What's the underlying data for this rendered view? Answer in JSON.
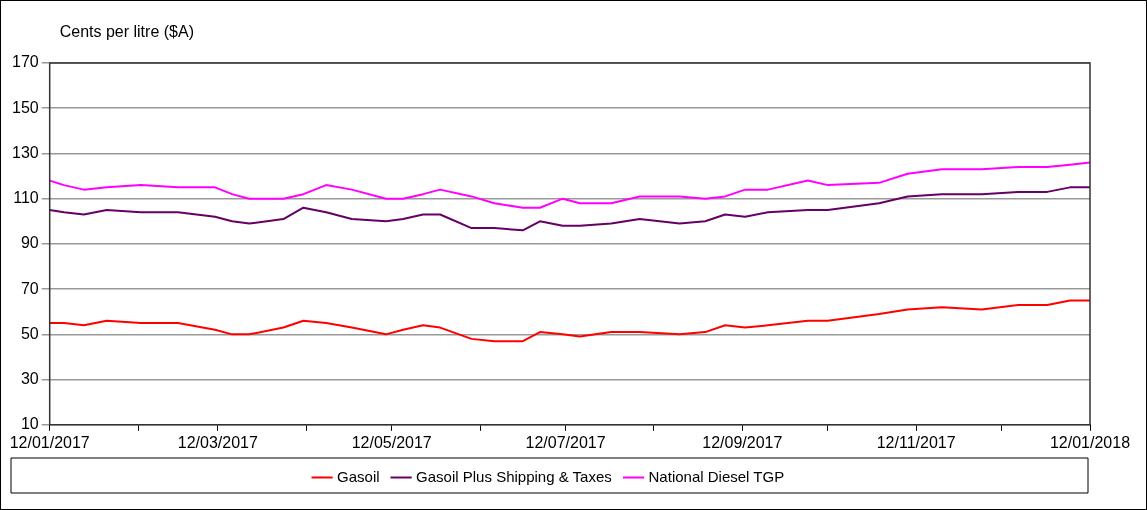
{
  "chart_data": {
    "type": "line",
    "ylabel": "Cents per litre ($A)",
    "x": [
      "2017-01-12",
      "2017-01-17",
      "2017-01-24",
      "2017-02-01",
      "2017-02-13",
      "2017-02-26",
      "2017-03-11",
      "2017-03-17",
      "2017-03-23",
      "2017-04-04",
      "2017-04-11",
      "2017-04-19",
      "2017-04-28",
      "2017-05-10",
      "2017-05-16",
      "2017-05-23",
      "2017-05-29",
      "2017-06-09",
      "2017-06-17",
      "2017-06-27",
      "2017-07-03",
      "2017-07-11",
      "2017-07-17",
      "2017-07-28",
      "2017-08-07",
      "2017-08-21",
      "2017-08-30",
      "2017-09-06",
      "2017-09-13",
      "2017-09-21",
      "2017-10-05",
      "2017-10-12",
      "2017-10-30",
      "2017-11-09",
      "2017-11-21",
      "2017-12-05",
      "2017-12-18",
      "2017-12-28",
      "2018-01-05",
      "2018-01-12"
    ],
    "series": [
      {
        "name": "Gasoil",
        "color": "#ff0000",
        "values": [
          55,
          55,
          54,
          56,
          55,
          55,
          52,
          50,
          50,
          53,
          56,
          55,
          53,
          50,
          52,
          54,
          53,
          48,
          47,
          47,
          51,
          50,
          49,
          51,
          51,
          50,
          51,
          54,
          53,
          54,
          56,
          56,
          59,
          61,
          62,
          61,
          63,
          63,
          65,
          65
        ]
      },
      {
        "name": "Gasoil Plus Shipping & Taxes",
        "color": "#660066",
        "values": [
          105,
          104,
          103,
          105,
          104,
          104,
          102,
          100,
          99,
          101,
          106,
          104,
          101,
          100,
          101,
          103,
          103,
          97,
          97,
          96,
          100,
          98,
          98,
          99,
          101,
          99,
          100,
          103,
          102,
          104,
          105,
          105,
          108,
          111,
          112,
          112,
          113,
          113,
          115,
          115
        ]
      },
      {
        "name": "National Diesel TGP",
        "color": "#ff00ff",
        "values": [
          118,
          116,
          114,
          115,
          116,
          115,
          115,
          112,
          110,
          110,
          112,
          116,
          114,
          110,
          110,
          112,
          114,
          111,
          108,
          106,
          106,
          110,
          108,
          108,
          111,
          111,
          110,
          111,
          114,
          114,
          118,
          116,
          117,
          121,
          123,
          123,
          124,
          124,
          125,
          126
        ]
      }
    ],
    "xlim": [
      "2017-01-12",
      "2018-01-12"
    ],
    "xticks": [
      {
        "value": "2017-01-12",
        "label": "12/01/2017"
      },
      {
        "value": "2017-02-12",
        "label": null
      },
      {
        "value": "2017-03-12",
        "label": "12/03/2017"
      },
      {
        "value": "2017-04-12",
        "label": null
      },
      {
        "value": "2017-05-12",
        "label": "12/05/2017"
      },
      {
        "value": "2017-06-12",
        "label": null
      },
      {
        "value": "2017-07-12",
        "label": "12/07/2017"
      },
      {
        "value": "2017-08-12",
        "label": null
      },
      {
        "value": "2017-09-12",
        "label": "12/09/2017"
      },
      {
        "value": "2017-10-12",
        "label": null
      },
      {
        "value": "2017-11-12",
        "label": "12/11/2017"
      },
      {
        "value": "2017-12-12",
        "label": null
      },
      {
        "value": "2018-01-12",
        "label": "12/01/2018"
      }
    ],
    "ylim": [
      10,
      170
    ],
    "yticks": [
      10,
      30,
      50,
      70,
      90,
      110,
      130,
      150,
      170
    ],
    "grid": "y",
    "legend": "bottom",
    "marker": "none",
    "line_style": "solid"
  }
}
